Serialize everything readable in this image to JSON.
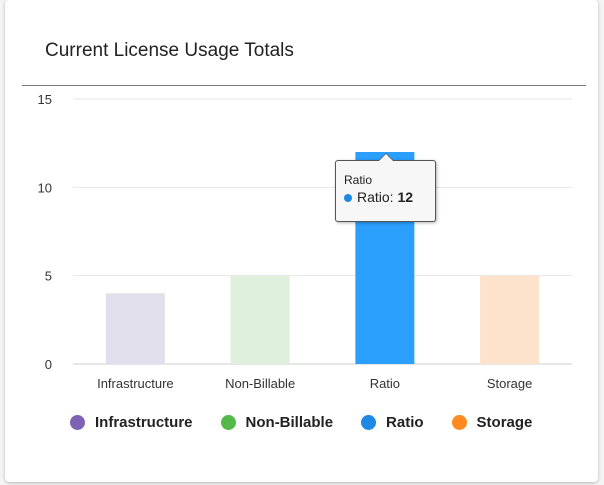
{
  "chart_data": {
    "type": "bar",
    "title": "Current License Usage Totals",
    "categories": [
      "Infrastructure",
      "Non-Billable",
      "Ratio",
      "Storage"
    ],
    "values": [
      4,
      5,
      12,
      5
    ],
    "ylim": [
      0,
      15
    ],
    "yticks": [
      "0",
      "5",
      "10",
      "15"
    ],
    "grid": true,
    "legend_placement": "bottom",
    "colors": [
      "#7e63b5",
      "#54b948",
      "#1e88e5",
      "#ff8a1f"
    ],
    "bar_colors": [
      "#e1dfec",
      "#dff0dc",
      "#2b9ffc",
      "#fde3cc"
    ],
    "legend": [
      "Infrastructure",
      "Non-Billable",
      "Ratio",
      "Storage"
    ],
    "tooltip": {
      "header": "Ratio",
      "label": "Ratio:",
      "value": "12",
      "color": "#1e88e5"
    }
  }
}
